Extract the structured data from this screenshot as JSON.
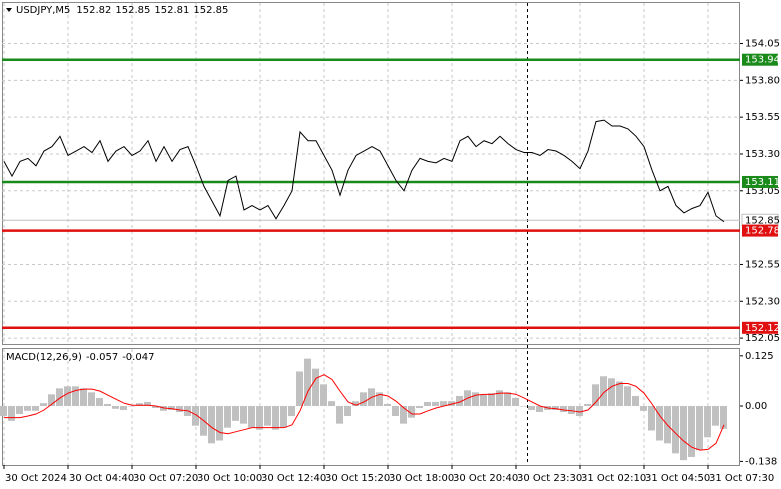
{
  "chart_data": [
    {
      "type": "line",
      "title": "USDJPY,M5",
      "ohlc": [
        152.82,
        152.85,
        152.81,
        152.85
      ],
      "color": "#000000",
      "values": [
        153.25,
        153.15,
        153.25,
        153.27,
        153.22,
        153.32,
        153.35,
        153.42,
        153.29,
        153.32,
        153.35,
        153.31,
        153.39,
        153.25,
        153.32,
        153.35,
        153.29,
        153.32,
        153.39,
        153.25,
        153.35,
        153.25,
        153.33,
        153.35,
        153.22,
        153.08,
        152.98,
        152.88,
        153.12,
        153.15,
        152.92,
        152.95,
        152.92,
        152.95,
        152.86,
        152.95,
        153.05,
        153.45,
        153.39,
        153.39,
        153.29,
        153.19,
        153.02,
        153.19,
        153.29,
        153.32,
        153.35,
        153.32,
        153.22,
        153.12,
        153.05,
        153.19,
        153.27,
        153.25,
        153.24,
        153.27,
        153.25,
        153.39,
        153.42,
        153.35,
        153.39,
        153.37,
        153.42,
        153.37,
        153.33,
        153.31,
        153.31,
        153.29,
        153.33,
        153.32,
        153.29,
        153.25,
        153.2,
        153.32,
        153.52,
        153.53,
        153.49,
        153.49,
        153.47,
        153.42,
        153.35,
        153.19,
        153.05,
        153.08,
        152.95,
        152.9,
        152.93,
        152.95,
        153.04,
        152.88,
        152.84
      ],
      "ylim": [
        152.01,
        154.325
      ],
      "yticks": [
        154.05,
        {
          "value": 153.8,
          "label": "153.80"
        },
        153.55,
        {
          "value": 153.3,
          "label": "153.30"
        },
        153.05,
        152.55,
        {
          "value": 152.3,
          "label": "152.30"
        },
        152.05
      ],
      "grid": true,
      "levels": [
        {
          "value": 153.94,
          "color": "#1a8a1a"
        },
        {
          "value": 153.11,
          "color": "#1a8a1a"
        },
        {
          "value": 152.78,
          "color": "#e01010"
        },
        {
          "value": 152.12,
          "color": "#e01010"
        }
      ],
      "current_price": {
        "value": 152.85,
        "color": "#c0c0c0"
      }
    },
    {
      "type": "macd",
      "title": "MACD(12,26,9)",
      "title_values": [
        -0.057,
        -0.047
      ],
      "series": [
        {
          "type": "bar",
          "color": "#c0c0c0",
          "values": [
            -0.025,
            -0.037,
            -0.02,
            -0.012,
            -0.012,
            0.007,
            0.029,
            0.044,
            0.049,
            0.049,
            0.044,
            0.034,
            0.02,
            0.005,
            -0.007,
            -0.01,
            0,
            0.007,
            0.01,
            -0.005,
            -0.012,
            -0.01,
            -0.015,
            -0.025,
            -0.049,
            -0.074,
            -0.093,
            -0.086,
            -0.054,
            -0.037,
            -0.044,
            -0.054,
            -0.059,
            -0.049,
            -0.059,
            -0.054,
            -0.025,
            0.086,
            0.118,
            0.093,
            0.054,
            0.012,
            -0.044,
            -0.025,
            0.012,
            0.034,
            0.044,
            0.034,
            0.005,
            -0.025,
            -0.044,
            -0.029,
            -0.005,
            0.01,
            0.01,
            0.012,
            0.012,
            0.025,
            0.039,
            0.034,
            0.029,
            0.032,
            0.039,
            0.034,
            0.02,
            0,
            -0.01,
            -0.015,
            -0.01,
            -0.01,
            -0.015,
            -0.02,
            -0.025,
            0.005,
            0.054,
            0.074,
            0.069,
            0.061,
            0.049,
            0.025,
            -0.012,
            -0.061,
            -0.086,
            -0.093,
            -0.118,
            -0.135,
            -0.127,
            -0.11,
            -0.078,
            -0.049,
            -0.057
          ]
        },
        {
          "type": "line",
          "color": "#ff0000",
          "values": [
            -0.029,
            -0.029,
            -0.029,
            -0.025,
            -0.02,
            -0.01,
            0.005,
            0.02,
            0.032,
            0.039,
            0.042,
            0.042,
            0.037,
            0.027,
            0.017,
            0.007,
            0.002,
            0.002,
            0.002,
            0,
            -0.005,
            -0.007,
            -0.01,
            -0.012,
            -0.022,
            -0.037,
            -0.054,
            -0.066,
            -0.069,
            -0.064,
            -0.059,
            -0.054,
            -0.054,
            -0.054,
            -0.054,
            -0.054,
            -0.047,
            -0.012,
            0.037,
            0.069,
            0.078,
            0.066,
            0.037,
            0.01,
            0.002,
            0.01,
            0.022,
            0.029,
            0.025,
            0.012,
            -0.005,
            -0.02,
            -0.02,
            -0.012,
            -0.005,
            0,
            0.005,
            0.01,
            0.02,
            0.027,
            0.029,
            0.029,
            0.032,
            0.032,
            0.029,
            0.02,
            0.01,
            0,
            -0.005,
            -0.007,
            -0.01,
            -0.012,
            -0.015,
            -0.01,
            0.01,
            0.034,
            0.049,
            0.056,
            0.056,
            0.049,
            0.032,
            0.005,
            -0.025,
            -0.049,
            -0.069,
            -0.088,
            -0.103,
            -0.11,
            -0.108,
            -0.093,
            -0.047
          ]
        }
      ],
      "ylim": [
        -0.147,
        0.142
      ],
      "yticks": [
        0.125,
        {
          "value": 0,
          "label": "0.00"
        },
        -0.138
      ],
      "xticks": [
        {
          "value": 0,
          "label": "30 Oct 2024"
        },
        {
          "value": 8,
          "label": "30 Oct 04:40"
        },
        {
          "value": 16,
          "label": "30 Oct 07:20"
        },
        {
          "value": 24,
          "label": "30 Oct 10:00"
        },
        {
          "value": 32,
          "label": "30 Oct 12:40"
        },
        {
          "value": 40,
          "label": "30 Oct 15:20"
        },
        {
          "value": 48,
          "label": "30 Oct 18:00"
        },
        {
          "value": 56,
          "label": "30 Oct 20:40"
        },
        {
          "value": 64,
          "label": "30 Oct 23:30"
        },
        {
          "value": 72,
          "label": "31 Oct 02:10"
        },
        {
          "value": 80,
          "label": "31 Oct 04:50"
        },
        {
          "value": 88,
          "label": "31 Oct 07:30"
        }
      ]
    }
  ]
}
